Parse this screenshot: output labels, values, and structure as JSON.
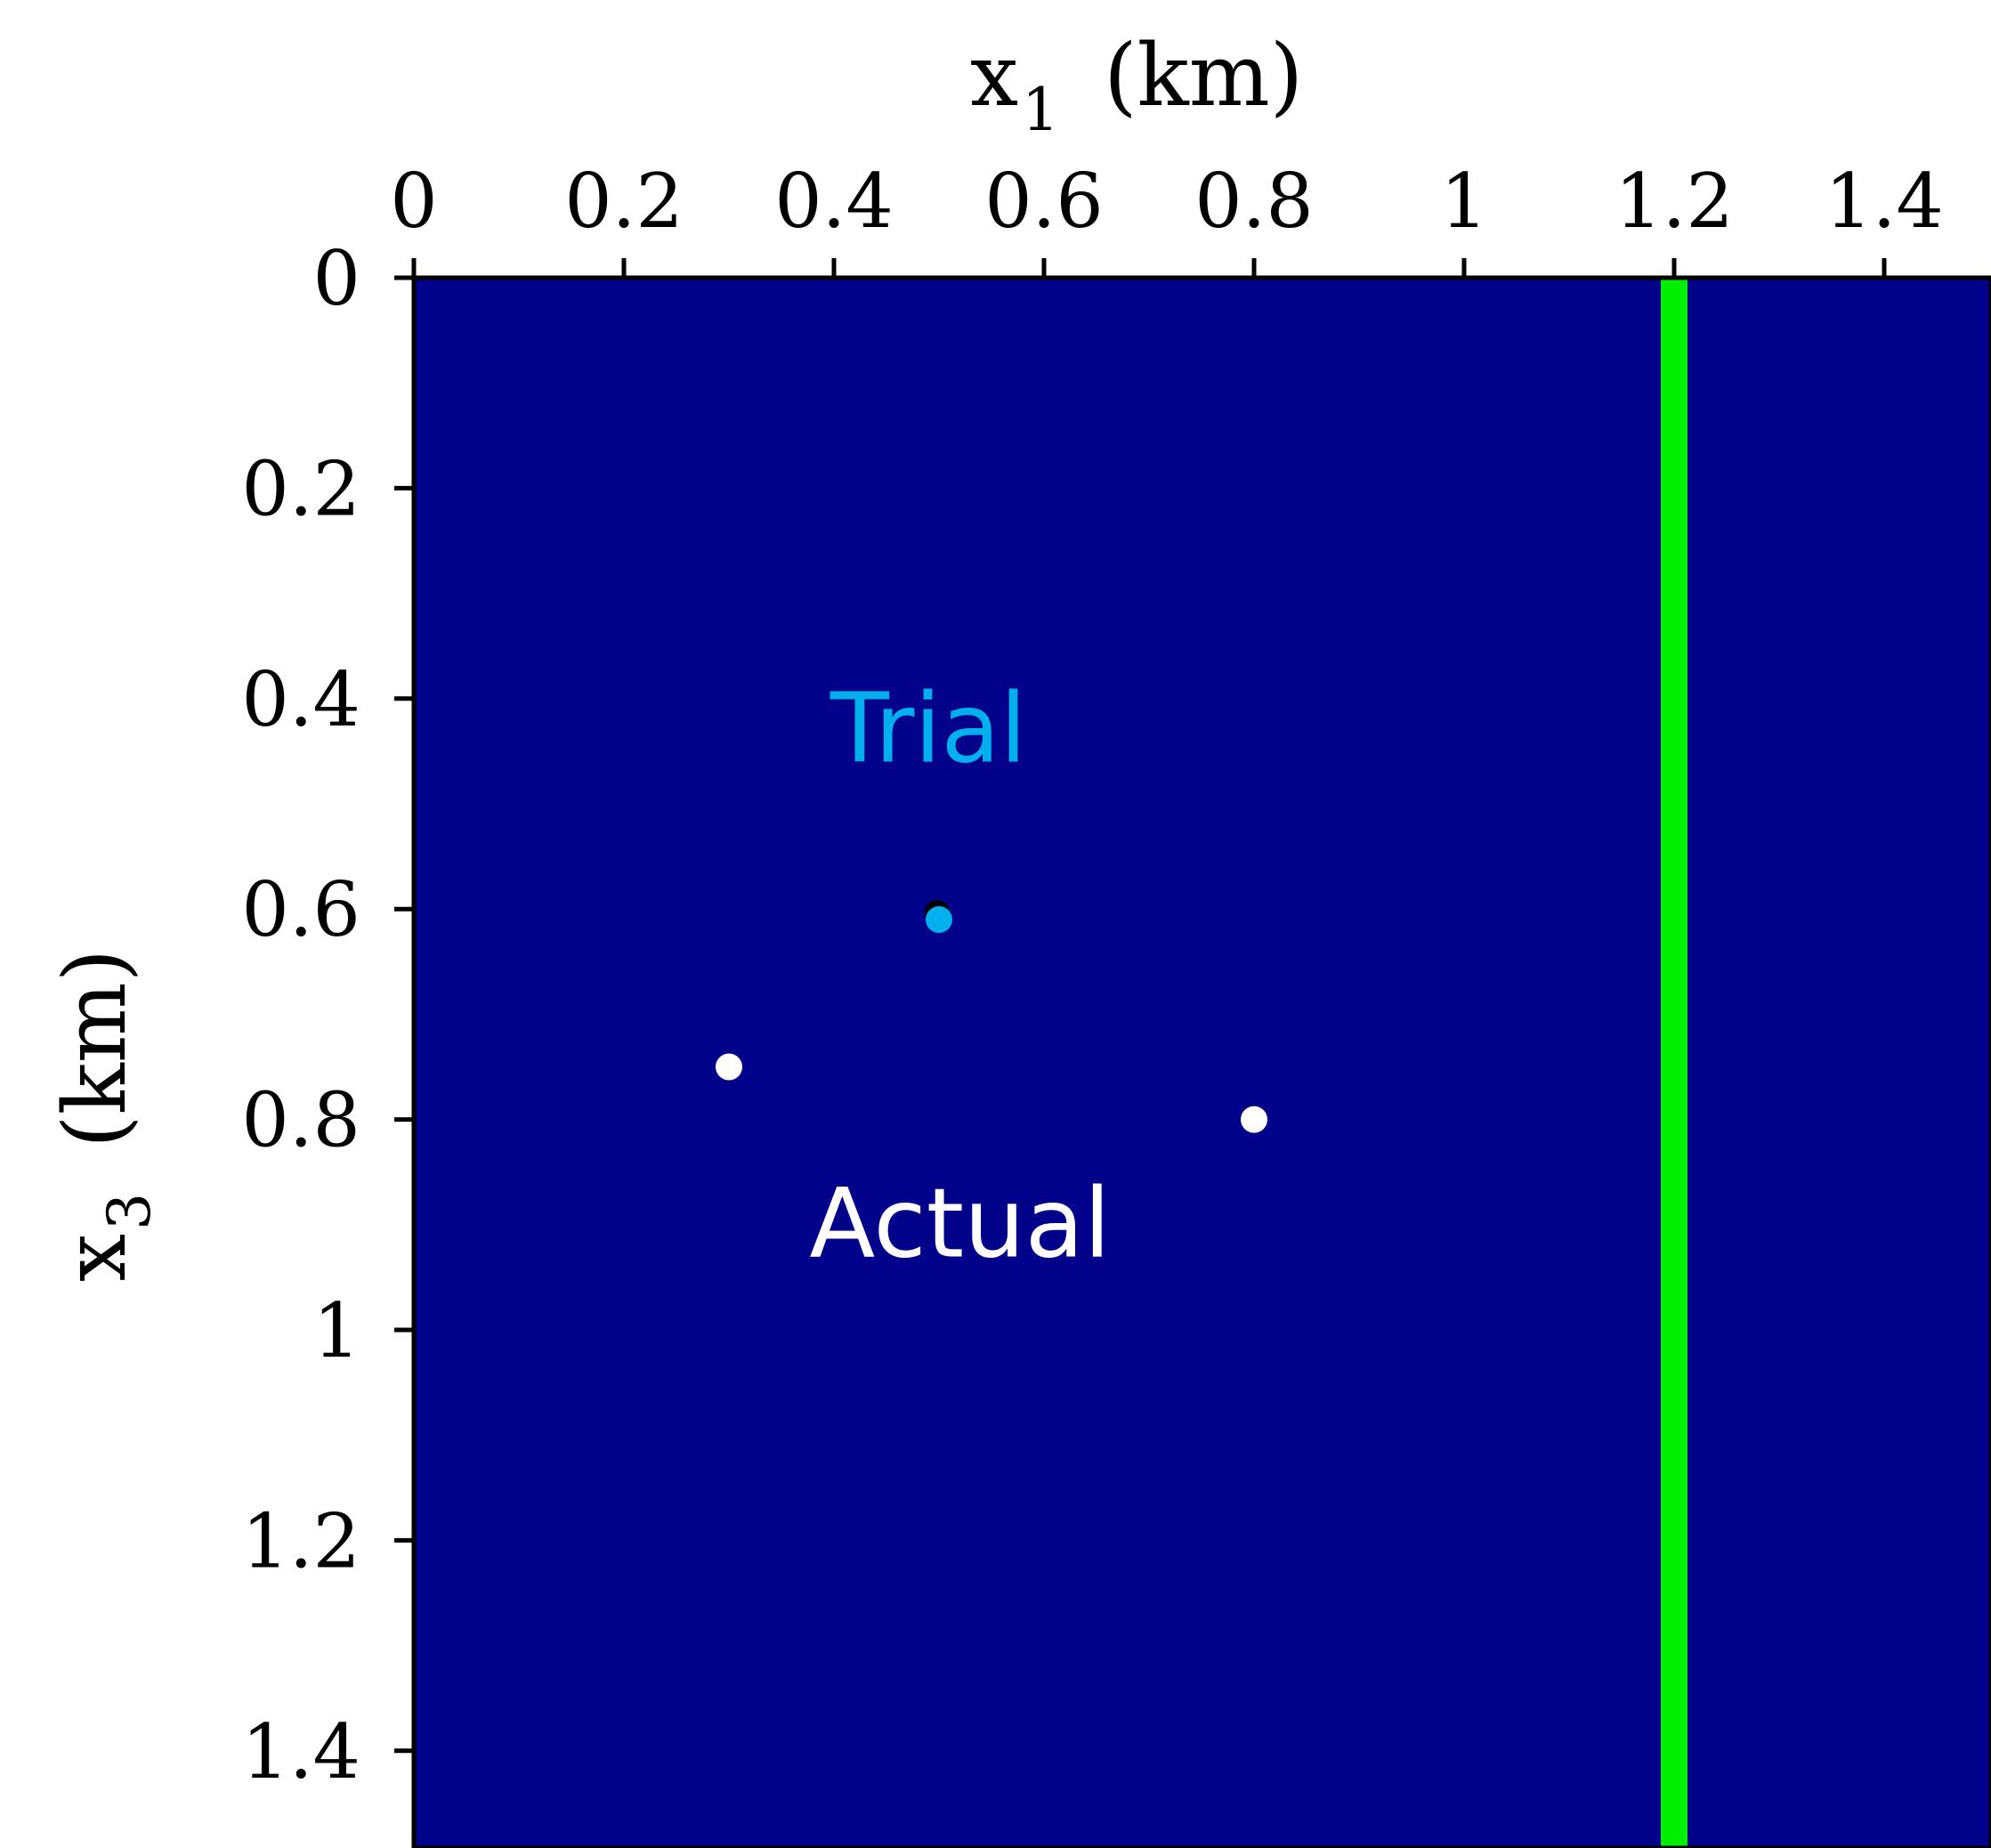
{
  "chart_data": {
    "type": "scatter",
    "xlabel": {
      "main": "x",
      "sub": "1",
      "unit": "(km)"
    },
    "ylabel": {
      "main": "x",
      "sub": "3",
      "unit": "(km)"
    },
    "xlim": [
      0,
      1.5
    ],
    "ylim": [
      0,
      1.5
    ],
    "y_inverted": true,
    "x_axis_position": "top",
    "x_ticks": [
      {
        "value": 0,
        "label": "0"
      },
      {
        "value": 0.2,
        "label": "0.2"
      },
      {
        "value": 0.4,
        "label": "0.4"
      },
      {
        "value": 0.6,
        "label": "0.6"
      },
      {
        "value": 0.8,
        "label": "0.8"
      },
      {
        "value": 1.0,
        "label": "1"
      },
      {
        "value": 1.2,
        "label": "1.2"
      },
      {
        "value": 1.4,
        "label": "1.4"
      }
    ],
    "y_ticks": [
      {
        "value": 0,
        "label": "0"
      },
      {
        "value": 0.2,
        "label": "0.2"
      },
      {
        "value": 0.4,
        "label": "0.4"
      },
      {
        "value": 0.6,
        "label": "0.6"
      },
      {
        "value": 0.8,
        "label": "0.8"
      },
      {
        "value": 1.0,
        "label": "1"
      },
      {
        "value": 1.2,
        "label": "1.2"
      },
      {
        "value": 1.4,
        "label": "1.4"
      }
    ],
    "background_color": "#02028a",
    "vertical_line": {
      "x": 1.2,
      "color": "#00ee00"
    },
    "series": [
      {
        "name": "Trial",
        "color": "#00b0ee",
        "points": [
          {
            "x": 0.5,
            "y": 0.61
          }
        ]
      },
      {
        "name": "Actual",
        "color": "#ffffff",
        "points": [
          {
            "x": 0.3,
            "y": 0.75
          },
          {
            "x": 0.8,
            "y": 0.8
          }
        ]
      }
    ],
    "annotations": [
      {
        "text": "Trial",
        "x": 0.49,
        "y": 0.46,
        "color": "#00b0ee"
      },
      {
        "text": "Actual",
        "x": 0.52,
        "y": 0.93,
        "color": "#ffffff"
      }
    ],
    "grid": false
  }
}
